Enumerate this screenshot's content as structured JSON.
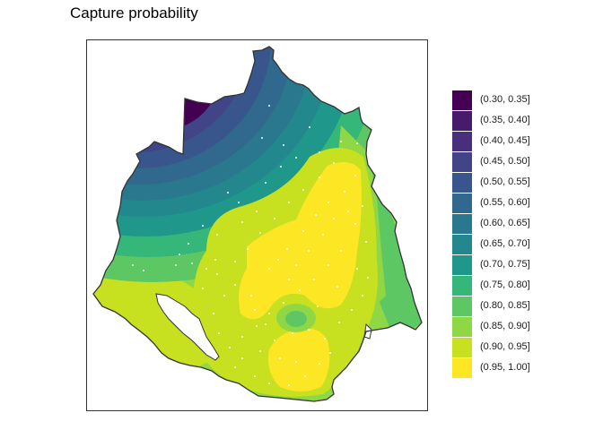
{
  "title": "Capture probability",
  "legend": {
    "items": [
      {
        "label": "(0.30, 0.35]",
        "color": "#440154"
      },
      {
        "label": "(0.35, 0.40]",
        "color": "#481A6C"
      },
      {
        "label": "(0.40, 0.45]",
        "color": "#472F7D"
      },
      {
        "label": "(0.45, 0.50]",
        "color": "#414487"
      },
      {
        "label": "(0.50, 0.55]",
        "color": "#39568C"
      },
      {
        "label": "(0.55, 0.60]",
        "color": "#31688E"
      },
      {
        "label": "(0.60, 0.65]",
        "color": "#2A788E"
      },
      {
        "label": "(0.65, 0.70]",
        "color": "#23888E"
      },
      {
        "label": "(0.70, 0.75]",
        "color": "#1F988B"
      },
      {
        "label": "(0.75, 0.80]",
        "color": "#35B779"
      },
      {
        "label": "(0.80, 0.85]",
        "color": "#5DC863"
      },
      {
        "label": "(0.85, 0.90]",
        "color": "#8FD744"
      },
      {
        "label": "(0.90, 0.95]",
        "color": "#C7E020"
      },
      {
        "label": "(0.95, 1.00]",
        "color": "#FDE725"
      }
    ]
  }
}
